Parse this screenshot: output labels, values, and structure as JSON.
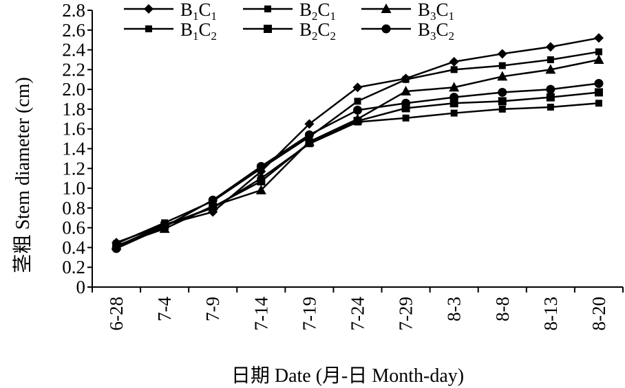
{
  "chart_data": {
    "type": "line",
    "categories": [
      "6-28",
      "7-4",
      "7-9",
      "7-14",
      "7-19",
      "7-24",
      "7-29",
      "8-3",
      "8-8",
      "8-13",
      "8-20"
    ],
    "xlabel": "日期 Date (月-日 Month-day)",
    "ylabel": "茎粗 Stem diameter (cm)",
    "ylim": [
      0,
      2.8
    ],
    "yticks": [
      "0",
      "0.2",
      "0.4",
      "0.6",
      "0.8",
      "1.0",
      "1.2",
      "1.4",
      "1.6",
      "1.8",
      "2.0",
      "2.2",
      "2.4",
      "2.6",
      "2.8"
    ],
    "ytick_values": [
      0,
      0.2,
      0.4,
      0.6,
      0.8,
      1.0,
      1.2,
      1.4,
      1.6,
      1.8,
      2.0,
      2.2,
      2.4,
      2.6,
      2.8
    ],
    "grid": false,
    "legend_placement": "top",
    "series": [
      {
        "name": "B1C1",
        "base": "B",
        "sub1": "1",
        "mid": "C",
        "sub2": "1",
        "marker": "diamond",
        "values": [
          0.45,
          0.63,
          0.76,
          1.17,
          1.65,
          2.02,
          2.11,
          2.28,
          2.36,
          2.43,
          2.52
        ]
      },
      {
        "name": "B2C1",
        "base": "B",
        "sub1": "2",
        "mid": "C",
        "sub2": "1",
        "marker": "square-small",
        "values": [
          0.44,
          0.65,
          0.87,
          1.2,
          1.52,
          1.88,
          2.1,
          2.2,
          2.24,
          2.3,
          2.38
        ]
      },
      {
        "name": "B3C1",
        "base": "B",
        "sub1": "3",
        "mid": "C",
        "sub2": "1",
        "marker": "triangle",
        "values": [
          0.42,
          0.59,
          0.82,
          0.98,
          1.47,
          1.7,
          1.98,
          2.02,
          2.13,
          2.2,
          2.3
        ]
      },
      {
        "name": "B1C2",
        "base": "B",
        "sub1": "1",
        "mid": "C",
        "sub2": "2",
        "marker": "square-small",
        "values": [
          0.41,
          0.63,
          0.8,
          1.1,
          1.45,
          1.67,
          1.71,
          1.76,
          1.8,
          1.82,
          1.86
        ]
      },
      {
        "name": "B2C2",
        "base": "B",
        "sub1": "2",
        "mid": "C",
        "sub2": "2",
        "marker": "square",
        "values": [
          0.41,
          0.62,
          0.81,
          1.07,
          1.46,
          1.68,
          1.81,
          1.86,
          1.88,
          1.92,
          1.97
        ]
      },
      {
        "name": "B3C2",
        "base": "B",
        "sub1": "3",
        "mid": "C",
        "sub2": "2",
        "marker": "circle",
        "values": [
          0.39,
          0.61,
          0.88,
          1.22,
          1.54,
          1.79,
          1.86,
          1.92,
          1.97,
          2.0,
          2.06
        ]
      }
    ]
  }
}
